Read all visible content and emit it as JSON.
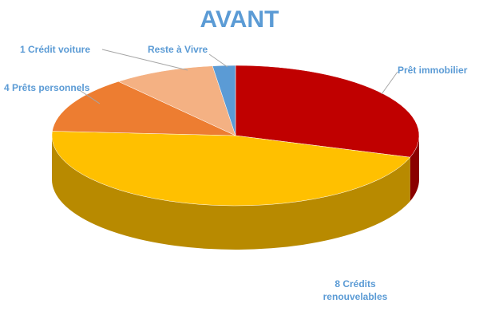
{
  "chart_data": {
    "type": "pie",
    "title": "AVANT",
    "categories": [
      "Prêt immobilier",
      "8 Crédits renouvelables",
      "4 Prêts personnels",
      "1 Crédit voiture",
      "Reste à Vivre"
    ],
    "values": [
      30,
      46,
      13,
      9,
      2
    ],
    "colors": [
      "#c00000",
      "#ffc000",
      "#ed7d31",
      "#f4b183",
      "#5b9bd5"
    ]
  }
}
